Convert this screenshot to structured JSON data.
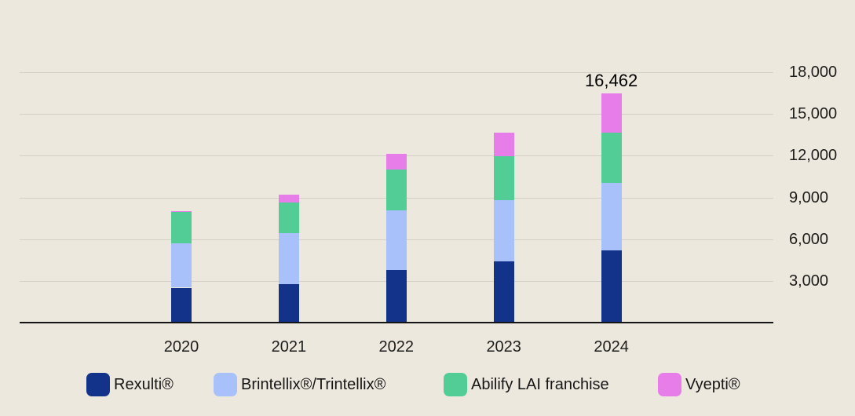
{
  "chart_data": {
    "type": "bar",
    "stacked": true,
    "title": "",
    "categories": [
      "2020",
      "2021",
      "2022",
      "2023",
      "2024"
    ],
    "series": [
      {
        "name": "Rexulti®",
        "color": "#13338a",
        "values": [
          2510,
          2790,
          3800,
          4420,
          5170
        ]
      },
      {
        "name": "Brintellix®/Trintellix®",
        "color": "#a9c1fa",
        "values": [
          3170,
          3620,
          4290,
          4370,
          4860
        ]
      },
      {
        "name": "Abilify LAI franchise",
        "color": "#52cd96",
        "values": [
          2260,
          2230,
          2930,
          3170,
          3620
        ]
      },
      {
        "name": "Vyepti®",
        "color": "#e77de9",
        "values": [
          100,
          560,
          1090,
          1700,
          2812
        ]
      }
    ],
    "totals": [
      8040,
      9200,
      12110,
      13660,
      16462
    ],
    "y_axis": {
      "min": 0,
      "max": 18000,
      "step": 3000,
      "side": "right",
      "grid": true,
      "tick_labels": [
        "3,000",
        "6,000",
        "9,000",
        "12,000",
        "15,000",
        "18,000"
      ]
    },
    "annotations": [
      {
        "category": "2024",
        "series": "total",
        "text": "16,462"
      }
    ],
    "legend": {
      "position": "bottom",
      "items": [
        "Rexulti®",
        "Brintellix®/Trintellix®",
        "Abilify LAI franchise",
        "Vyepti®"
      ]
    },
    "colors": {
      "background": "#ece8de",
      "gridline": "#d2cfc6",
      "axis_line": "#141414",
      "label_text": "#1d1d1b",
      "annotation_text": "#000000"
    }
  }
}
